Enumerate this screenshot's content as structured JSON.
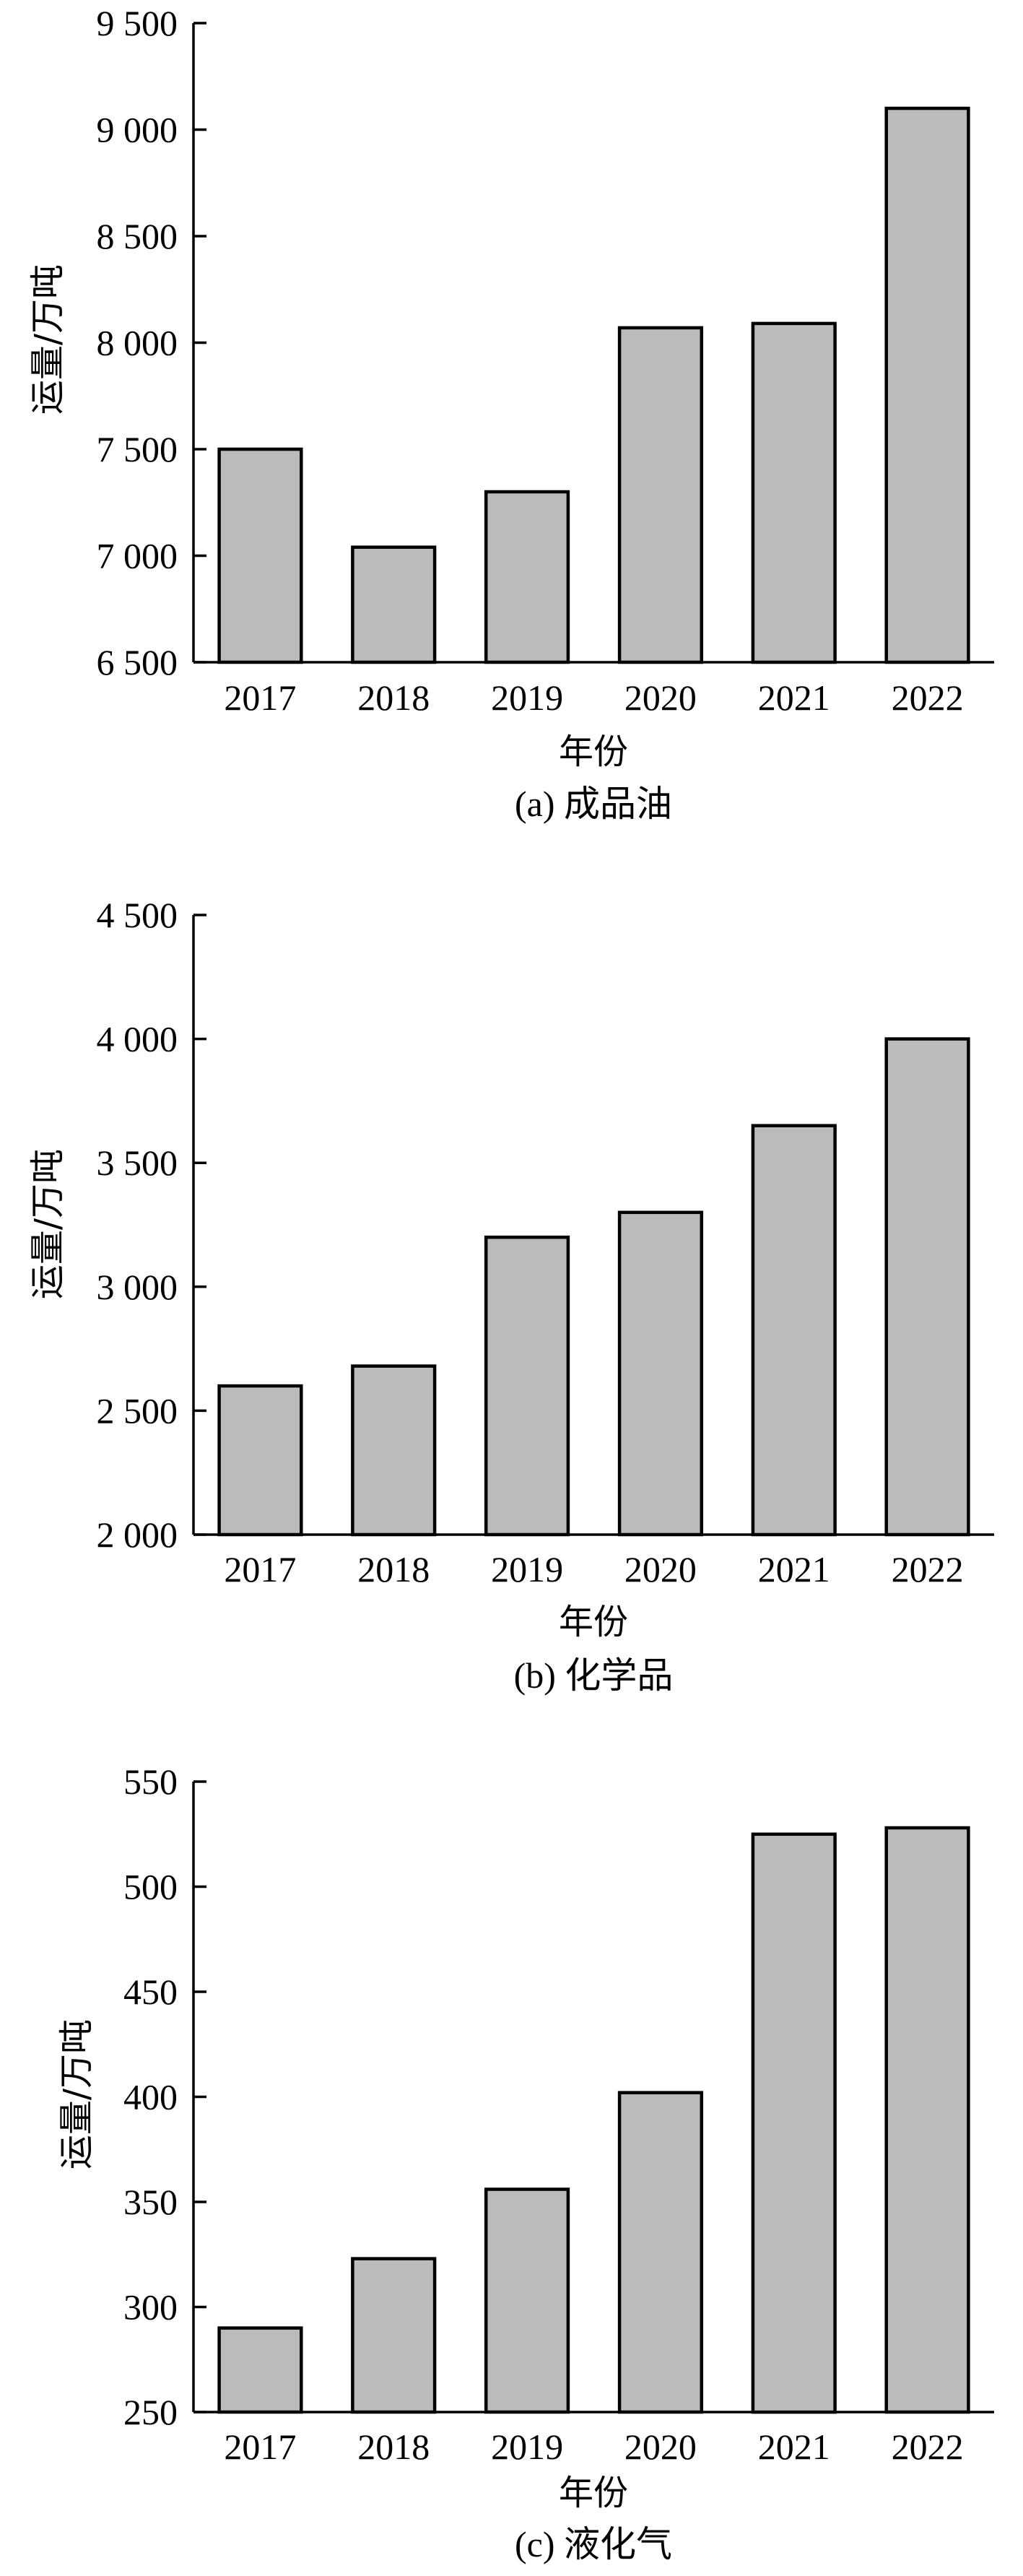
{
  "chart_data": [
    {
      "type": "bar",
      "caption": "(a) 成品油",
      "xlabel": "年份",
      "ylabel": "运量/万吨",
      "categories": [
        "2017",
        "2018",
        "2019",
        "2020",
        "2021",
        "2022"
      ],
      "values": [
        7500,
        7040,
        7300,
        8070,
        8090,
        9100
      ],
      "ylim": [
        6500,
        9500
      ],
      "yticks": [
        6500,
        7000,
        7500,
        8000,
        8500,
        9000,
        9500
      ],
      "ytick_labels": [
        "6 500",
        "7 000",
        "7 500",
        "8 000",
        "8 500",
        "9 000",
        "9 500"
      ],
      "grid": false,
      "bar_color": "#bbbbbb"
    },
    {
      "type": "bar",
      "caption": "(b) 化学品",
      "xlabel": "年份",
      "ylabel": "运量/万吨",
      "categories": [
        "2017",
        "2018",
        "2019",
        "2020",
        "2021",
        "2022"
      ],
      "values": [
        2600,
        2680,
        3200,
        3300,
        3650,
        4000
      ],
      "ylim": [
        2000,
        4500
      ],
      "yticks": [
        2000,
        2500,
        3000,
        3500,
        4000,
        4500
      ],
      "ytick_labels": [
        "2 000",
        "2 500",
        "3 000",
        "3 500",
        "4 000",
        "4 500"
      ],
      "grid": false,
      "bar_color": "#bbbbbb"
    },
    {
      "type": "bar",
      "caption": "(c) 液化气",
      "xlabel": "年份",
      "ylabel": "运量/万吨",
      "categories": [
        "2017",
        "2018",
        "2019",
        "2020",
        "2021",
        "2022"
      ],
      "values": [
        290,
        323,
        356,
        402,
        525,
        528
      ],
      "ylim": [
        250,
        550
      ],
      "yticks": [
        250,
        300,
        350,
        400,
        450,
        500,
        550
      ],
      "ytick_labels": [
        "250",
        "300",
        "350",
        "400",
        "450",
        "500",
        "550"
      ],
      "grid": false,
      "bar_color": "#bbbbbb"
    }
  ]
}
